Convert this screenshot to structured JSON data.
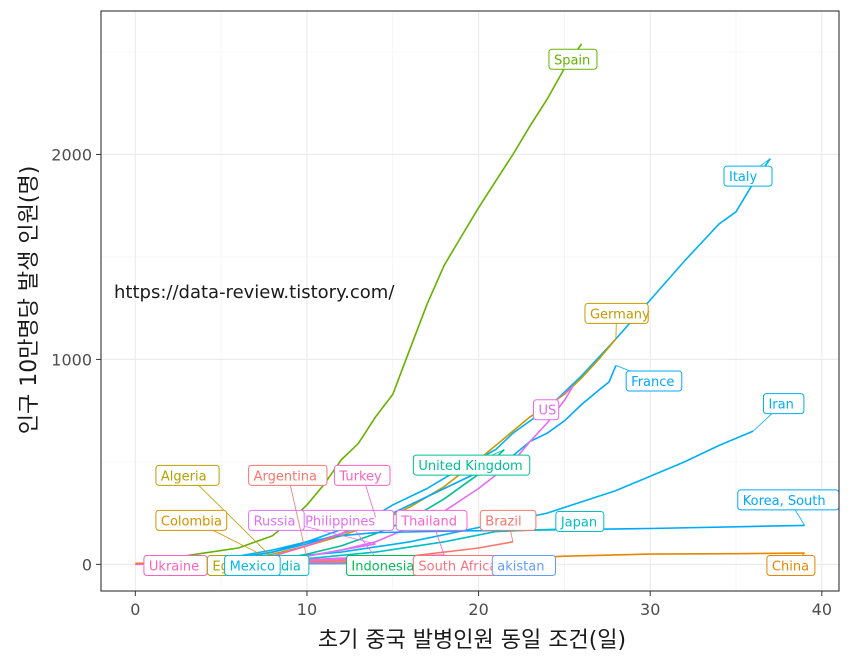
{
  "chart_data": {
    "type": "line",
    "xlabel": "초기 중국 발병인원 동일 조건(일)",
    "ylabel": "인구 10만명당 발생 인원(명)",
    "annotation": "https://data-review.tistory.com/",
    "xlim": [
      -2,
      41
    ],
    "ylim": [
      -130,
      2700
    ],
    "x_ticks": [
      0,
      10,
      20,
      30,
      40
    ],
    "y_ticks": [
      0,
      1000,
      2000
    ],
    "grid": true,
    "legend": "none",
    "series": [
      {
        "name": "Spain",
        "color": "#64b200",
        "points": [
          [
            2,
            30
          ],
          [
            4,
            55
          ],
          [
            6,
            80
          ],
          [
            8,
            140
          ],
          [
            9,
            210
          ],
          [
            10,
            290
          ],
          [
            11,
            390
          ],
          [
            12,
            510
          ],
          [
            13,
            590
          ],
          [
            14,
            720
          ],
          [
            15,
            830
          ],
          [
            16,
            1050
          ],
          [
            17,
            1270
          ],
          [
            18,
            1460
          ],
          [
            19,
            1600
          ],
          [
            20,
            1740
          ],
          [
            21,
            1870
          ],
          [
            22,
            2000
          ],
          [
            23,
            2140
          ],
          [
            24,
            2270
          ],
          [
            25,
            2420
          ],
          [
            26,
            2540
          ]
        ],
        "label": {
          "text": "Spain",
          "x": 24.1,
          "y": 2440
        }
      },
      {
        "name": "Italy",
        "color": "#00b0f6",
        "points": [
          [
            4,
            20
          ],
          [
            6,
            40
          ],
          [
            8,
            70
          ],
          [
            10,
            110
          ],
          [
            12,
            170
          ],
          [
            14,
            240
          ],
          [
            15,
            290
          ],
          [
            17,
            370
          ],
          [
            19,
            470
          ],
          [
            21,
            560
          ],
          [
            22,
            640
          ],
          [
            24,
            760
          ],
          [
            26,
            920
          ],
          [
            28,
            1100
          ],
          [
            30,
            1290
          ],
          [
            32,
            1480
          ],
          [
            34,
            1660
          ],
          [
            35,
            1720
          ],
          [
            36,
            1860
          ],
          [
            37,
            1980
          ]
        ],
        "label": {
          "text": "Italy",
          "x": 34.3,
          "y": 1870
        }
      },
      {
        "name": "Germany",
        "color": "#c49a00",
        "points": [
          [
            6,
            20
          ],
          [
            8,
            50
          ],
          [
            10,
            90
          ],
          [
            12,
            140
          ],
          [
            14,
            200
          ],
          [
            16,
            280
          ],
          [
            18,
            380
          ],
          [
            20,
            510
          ],
          [
            22,
            650
          ],
          [
            23,
            720
          ],
          [
            24,
            770
          ],
          [
            25,
            830
          ],
          [
            26,
            910
          ],
          [
            27,
            1000
          ],
          [
            28,
            1100
          ]
        ],
        "label": {
          "text": "Germany",
          "x": 26.2,
          "y": 1200
        }
      },
      {
        "name": "France",
        "color": "#00a9ff",
        "points": [
          [
            6,
            30
          ],
          [
            8,
            60
          ],
          [
            10,
            100
          ],
          [
            12,
            150
          ],
          [
            14,
            210
          ],
          [
            16,
            290
          ],
          [
            18,
            370
          ],
          [
            20,
            450
          ],
          [
            22,
            530
          ],
          [
            23,
            600
          ],
          [
            24,
            640
          ],
          [
            25,
            700
          ],
          [
            26,
            780
          ],
          [
            27,
            850
          ],
          [
            27.6,
            890
          ],
          [
            28,
            970
          ]
        ],
        "label": {
          "text": "France",
          "x": 28.6,
          "y": 870
        }
      },
      {
        "name": "Iran",
        "color": "#00b0f6",
        "points": [
          [
            4,
            10
          ],
          [
            8,
            30
          ],
          [
            12,
            60
          ],
          [
            16,
            110
          ],
          [
            20,
            180
          ],
          [
            24,
            250
          ],
          [
            28,
            360
          ],
          [
            30,
            430
          ],
          [
            32,
            500
          ],
          [
            34,
            580
          ],
          [
            36,
            650
          ]
        ],
        "label": {
          "text": "Iran",
          "x": 36.6,
          "y": 760
        }
      },
      {
        "name": "US",
        "color": "#e76bf3",
        "points": [
          [
            8,
            20
          ],
          [
            10,
            40
          ],
          [
            12,
            70
          ],
          [
            14,
            110
          ],
          [
            16,
            180
          ],
          [
            18,
            260
          ],
          [
            20,
            370
          ],
          [
            22,
            500
          ],
          [
            23,
            600
          ],
          [
            24,
            690
          ],
          [
            25,
            800
          ],
          [
            25.5,
            870
          ]
        ],
        "label": {
          "text": "US",
          "x": 23.2,
          "y": 730
        }
      },
      {
        "name": "United Kingdom",
        "color": "#00c094",
        "points": [
          [
            8,
            20
          ],
          [
            10,
            50
          ],
          [
            12,
            90
          ],
          [
            14,
            150
          ],
          [
            16,
            220
          ],
          [
            18,
            320
          ],
          [
            20,
            440
          ],
          [
            21.5,
            560
          ]
        ],
        "label": {
          "text": "United Kingdom",
          "x": 16.2,
          "y": 460
        }
      },
      {
        "name": "Korea, South",
        "color": "#00a9ff",
        "points": [
          [
            5,
            20
          ],
          [
            8,
            60
          ],
          [
            10,
            110
          ],
          [
            12,
            140
          ],
          [
            14,
            155
          ],
          [
            18,
            162
          ],
          [
            24,
            168
          ],
          [
            30,
            175
          ],
          [
            36,
            185
          ],
          [
            39,
            190
          ]
        ],
        "label": {
          "text": "Korea, South",
          "x": 35.1,
          "y": 290
        }
      },
      {
        "name": "Japan",
        "color": "#00bfc4",
        "points": [
          [
            9,
            20
          ],
          [
            14,
            60
          ],
          [
            18,
            110
          ],
          [
            21,
            160
          ],
          [
            24,
            170
          ],
          [
            26,
            175
          ]
        ],
        "label": {
          "text": "Japan",
          "x": 24.5,
          "y": 185
        }
      },
      {
        "name": "China",
        "color": "#e58700",
        "points": [
          [
            0,
            5
          ],
          [
            10,
            10
          ],
          [
            20,
            20
          ],
          [
            25,
            40
          ],
          [
            30,
            50
          ],
          [
            35,
            52
          ],
          [
            39,
            55
          ]
        ],
        "label": {
          "text": "China",
          "x": 36.8,
          "y": -30
        }
      },
      {
        "name": "Brazil",
        "color": "#f8766d",
        "points": [
          [
            6,
            5
          ],
          [
            12,
            20
          ],
          [
            16,
            40
          ],
          [
            20,
            80
          ],
          [
            22,
            110
          ]
        ],
        "label": {
          "text": "Brazil",
          "x": 20.1,
          "y": 190
        }
      },
      {
        "name": "Thailand",
        "color": "#fd61d1",
        "points": [
          [
            4,
            5
          ],
          [
            8,
            15
          ],
          [
            12,
            30
          ],
          [
            16,
            40
          ],
          [
            18,
            45
          ]
        ],
        "label": {
          "text": "Thailand",
          "x": 15.2,
          "y": 190
        }
      },
      {
        "name": "Philippines",
        "color": "#e76bf3",
        "points": [
          [
            4,
            5
          ],
          [
            8,
            15
          ],
          [
            12,
            25
          ],
          [
            14,
            35
          ]
        ],
        "label": {
          "text": "Philippines",
          "x": 9.6,
          "y": 190
        }
      },
      {
        "name": "Russia",
        "color": "#dc71fa",
        "points": [
          [
            4,
            5
          ],
          [
            8,
            20
          ],
          [
            10,
            40
          ],
          [
            12,
            70
          ],
          [
            14,
            100
          ]
        ],
        "label": {
          "text": "Russia",
          "x": 6.6,
          "y": 190
        }
      },
      {
        "name": "Turkey",
        "color": "#ff62bc",
        "points": [
          [
            6,
            10
          ],
          [
            8,
            40
          ],
          [
            10,
            90
          ],
          [
            12,
            150
          ],
          [
            14,
            230
          ]
        ],
        "label": {
          "text": "Turkey",
          "x": 11.6,
          "y": 410
        }
      },
      {
        "name": "Argentina",
        "color": "#f8766d",
        "points": [
          [
            4,
            5
          ],
          [
            6,
            10
          ],
          [
            8,
            20
          ],
          [
            10,
            30
          ]
        ],
        "label": {
          "text": "Argentina",
          "x": 6.6,
          "y": 410
        }
      },
      {
        "name": "Algeria",
        "color": "#b79f00",
        "points": [
          [
            2,
            5
          ],
          [
            4,
            10
          ],
          [
            6,
            20
          ],
          [
            8,
            30
          ]
        ],
        "label": {
          "text": "Algeria",
          "x": 1.2,
          "y": 410
        }
      },
      {
        "name": "Colombia",
        "color": "#d39200",
        "points": [
          [
            2,
            5
          ],
          [
            4,
            10
          ],
          [
            6,
            15
          ],
          [
            8,
            20
          ]
        ],
        "label": {
          "text": "Colombia",
          "x": 1.2,
          "y": 190
        }
      },
      {
        "name": "Ukraine",
        "color": "#ff61c3",
        "points": [
          [
            0,
            0
          ],
          [
            2,
            5
          ],
          [
            4,
            8
          ],
          [
            6,
            12
          ]
        ],
        "label": {
          "text": "Ukraine",
          "x": 0.5,
          "y": -30
        }
      },
      {
        "name": "Egypt",
        "color": "#aea200",
        "points": [
          [
            2,
            2
          ],
          [
            4,
            4
          ],
          [
            6,
            6
          ]
        ],
        "label": {
          "text": "Eg",
          "x": 4.2,
          "y": -30
        }
      },
      {
        "name": "India",
        "color": "#00bfc4",
        "points": [
          [
            4,
            1
          ],
          [
            8,
            2
          ],
          [
            10,
            3
          ]
        ],
        "label": {
          "text": "dia",
          "x": 8.2,
          "y": -30
        }
      },
      {
        "name": "Mexico",
        "color": "#00b8e7",
        "points": [
          [
            4,
            2
          ],
          [
            6,
            4
          ],
          [
            8,
            6
          ]
        ],
        "label": {
          "text": "Mexico",
          "x": 5.2,
          "y": -30
        }
      },
      {
        "name": "Indonesia",
        "color": "#00bc56",
        "points": [
          [
            8,
            2
          ],
          [
            12,
            5
          ],
          [
            16,
            10
          ]
        ],
        "label": {
          "text": "Indonesia",
          "x": 12.3,
          "y": -30
        }
      },
      {
        "name": "South Africa",
        "color": "#fc717f",
        "points": [
          [
            8,
            5
          ],
          [
            12,
            10
          ],
          [
            16,
            20
          ],
          [
            18,
            25
          ]
        ],
        "label": {
          "text": "South Africa",
          "x": 16.2,
          "y": -30
        }
      },
      {
        "name": "Pakistan",
        "color": "#619cff",
        "points": [
          [
            8,
            2
          ],
          [
            14,
            5
          ],
          [
            20,
            8
          ],
          [
            22,
            10
          ]
        ],
        "label": {
          "text": "akistan",
          "x": 20.8,
          "y": -30
        }
      }
    ]
  }
}
